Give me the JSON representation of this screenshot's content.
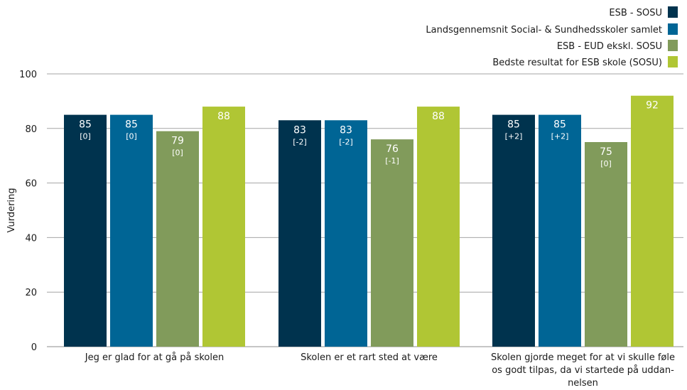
{
  "chart_data": {
    "type": "bar",
    "title": "",
    "xlabel": "",
    "ylabel": "Vurdering",
    "ylim": [
      0,
      100
    ],
    "yticks": [
      0,
      20,
      40,
      60,
      80,
      100
    ],
    "grid": true,
    "legend_position": "top-right",
    "categories": [
      "Jeg er glad for at gå på skolen",
      "Skolen er et rart sted at være",
      "Skolen gjorde meget for at vi skulle føle os godt tilpas, da vi startede på uddannelsen"
    ],
    "category_label_lines": [
      [
        "Jeg er glad for at gå på skolen"
      ],
      [
        "Skolen er et rart sted at være"
      ],
      [
        "Skolen gjorde meget for at vi skulle føle",
        "os godt tilpas, da vi startede på uddan-",
        "nelsen"
      ]
    ],
    "series": [
      {
        "name": "ESB - SOSU",
        "color": "#00334e",
        "values": [
          85,
          83,
          85
        ],
        "deltas": [
          "[0]",
          "[-2]",
          "[+2]"
        ]
      },
      {
        "name": "Landsgennemsnit Social- & Sundhedsskoler samlet",
        "color": "#006595",
        "values": [
          85,
          83,
          85
        ],
        "deltas": [
          "[0]",
          "[-2]",
          "[+2]"
        ]
      },
      {
        "name": "ESB - EUD ekskl. SOSU",
        "color": "#819b5b",
        "values": [
          79,
          76,
          75
        ],
        "deltas": [
          "[0]",
          "[-1]",
          "[0]"
        ]
      },
      {
        "name": "Bedste resultat for ESB skole (SOSU)",
        "color": "#b0c634",
        "values": [
          88,
          88,
          92
        ],
        "deltas": [
          "",
          "",
          ""
        ]
      }
    ]
  }
}
